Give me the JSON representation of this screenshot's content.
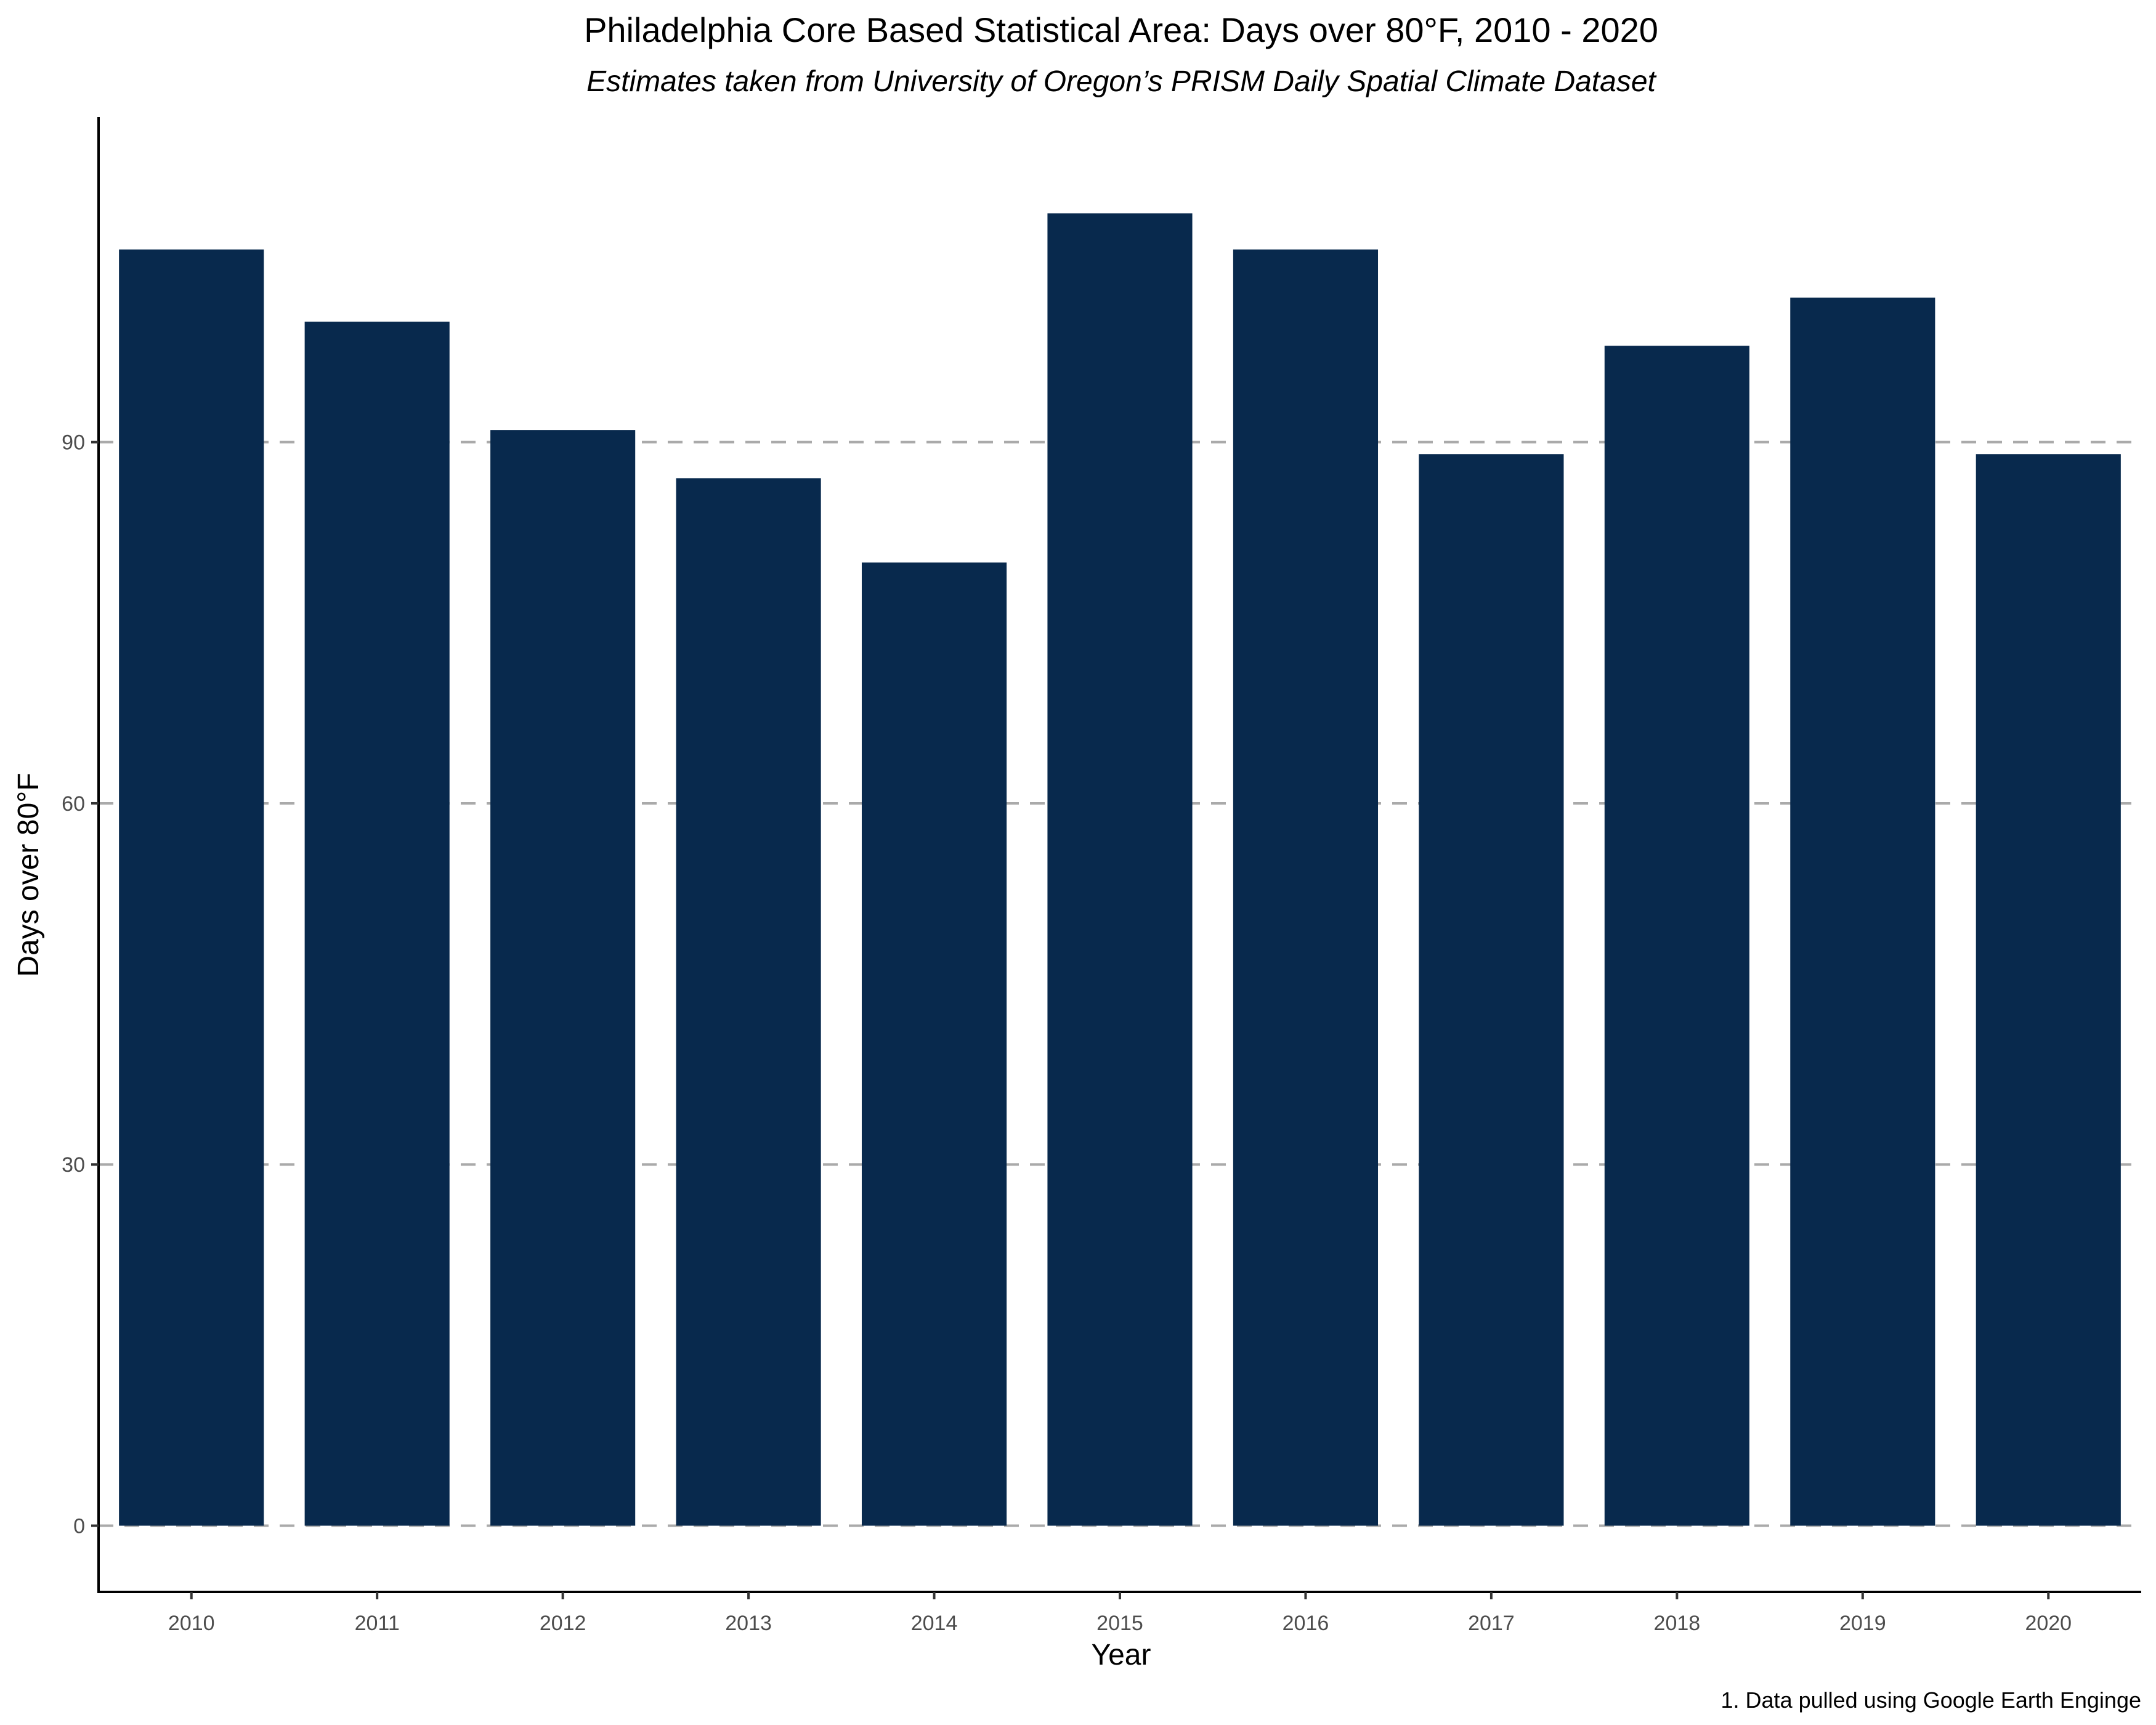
{
  "chart_data": {
    "type": "bar",
    "title": "Philadelphia Core Based Statistical Area: Days over 80°F, 2010 - 2020",
    "subtitle": "Estimates taken from University of Oregon’s PRISM Daily Spatial Climate Dataset",
    "xlabel": "Year",
    "ylabel": "Days over 80°F",
    "caption": "1. Data pulled using Google Earth Enginge",
    "categories": [
      "2010",
      "2011",
      "2012",
      "2013",
      "2014",
      "2015",
      "2016",
      "2017",
      "2018",
      "2019",
      "2020"
    ],
    "values": [
      106,
      100,
      91,
      87,
      80,
      109,
      106,
      89,
      98,
      102,
      89
    ],
    "ylim": [
      -5.5,
      117
    ],
    "yticks": [
      0,
      30,
      60,
      90
    ],
    "yticklabels": [
      "0",
      "30",
      "60",
      "90"
    ],
    "grid": "horizontal dashed",
    "bar_color": "#08294d",
    "grid_color": "#aaaaaa",
    "legend": "none"
  }
}
